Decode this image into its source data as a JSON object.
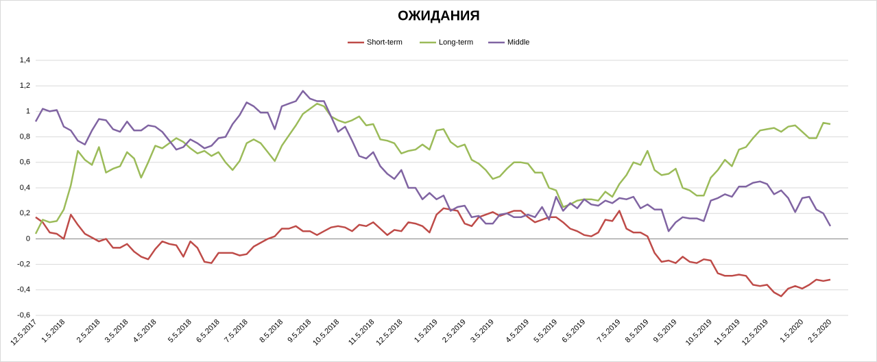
{
  "chart_data": {
    "type": "line",
    "title": "ОЖИДАНИЯ",
    "categories": [
      "12.5.2017",
      null,
      null,
      null,
      "1.5.2018",
      null,
      null,
      null,
      null,
      "2.5.2018",
      null,
      null,
      null,
      "3.5.2018",
      null,
      null,
      null,
      "4.5.2018",
      null,
      null,
      null,
      null,
      "5.5.2018",
      null,
      null,
      null,
      "6.5.2018",
      null,
      null,
      null,
      "7.5.2018",
      null,
      null,
      null,
      null,
      "8.5.2018",
      null,
      null,
      null,
      "9.5.2018",
      null,
      null,
      null,
      "10.5.2018",
      null,
      null,
      null,
      null,
      "11.5.2018",
      null,
      null,
      null,
      "12.5.2018",
      null,
      null,
      null,
      null,
      "1.5.2019",
      null,
      null,
      null,
      "2.5.2019",
      null,
      null,
      null,
      "3.5.2019",
      null,
      null,
      null,
      null,
      "4.5.2019",
      null,
      null,
      null,
      "5.5.2019",
      null,
      null,
      null,
      "6.5.2019",
      null,
      null,
      null,
      null,
      "7.5.2019",
      null,
      null,
      null,
      "8.5.2019",
      null,
      null,
      null,
      "9.5.2019",
      null,
      null,
      null,
      null,
      "10.5.2019",
      null,
      null,
      null,
      "11.5.2019",
      null,
      null,
      null,
      "12.5.2019",
      null,
      null,
      null,
      null,
      "1.5.2020",
      null,
      null,
      null,
      "2.5.2020"
    ],
    "series": [
      {
        "name": "Short-term",
        "color": "#be4b48",
        "values": [
          0.17,
          0.13,
          0.05,
          0.04,
          0.0,
          0.19,
          0.11,
          0.04,
          0.01,
          -0.02,
          0.0,
          -0.07,
          -0.07,
          -0.04,
          -0.1,
          -0.14,
          -0.16,
          -0.08,
          -0.02,
          -0.04,
          -0.05,
          -0.14,
          -0.02,
          -0.07,
          -0.18,
          -0.19,
          -0.11,
          -0.11,
          -0.11,
          -0.13,
          -0.12,
          -0.06,
          -0.03,
          0.0,
          0.02,
          0.08,
          0.08,
          0.1,
          0.06,
          0.06,
          0.03,
          0.06,
          0.09,
          0.1,
          0.09,
          0.06,
          0.11,
          0.1,
          0.13,
          0.08,
          0.03,
          0.07,
          0.06,
          0.13,
          0.12,
          0.1,
          0.05,
          0.19,
          0.24,
          0.23,
          0.22,
          0.12,
          0.1,
          0.17,
          0.19,
          0.21,
          0.18,
          0.2,
          0.22,
          0.22,
          0.17,
          0.13,
          0.15,
          0.17,
          0.17,
          0.13,
          0.08,
          0.06,
          0.03,
          0.02,
          0.05,
          0.15,
          0.14,
          0.22,
          0.08,
          0.05,
          0.05,
          0.02,
          -0.11,
          -0.18,
          -0.17,
          -0.19,
          -0.14,
          -0.18,
          -0.19,
          -0.16,
          -0.17,
          -0.27,
          -0.29,
          -0.29,
          -0.28,
          -0.29,
          -0.36,
          -0.37,
          -0.36,
          -0.42,
          -0.45,
          -0.39,
          -0.37,
          -0.39,
          -0.36,
          -0.32,
          -0.33,
          -0.32
        ]
      },
      {
        "name": "Long-term",
        "color": "#9bbb59",
        "values": [
          0.04,
          0.15,
          0.13,
          0.14,
          0.23,
          0.42,
          0.69,
          0.62,
          0.58,
          0.72,
          0.52,
          0.55,
          0.57,
          0.68,
          0.63,
          0.48,
          0.6,
          0.73,
          0.71,
          0.75,
          0.79,
          0.76,
          0.71,
          0.67,
          0.69,
          0.65,
          0.68,
          0.6,
          0.54,
          0.61,
          0.75,
          0.78,
          0.75,
          0.68,
          0.61,
          0.73,
          0.81,
          0.89,
          0.98,
          1.02,
          1.06,
          1.04,
          0.96,
          0.93,
          0.91,
          0.93,
          0.96,
          0.89,
          0.9,
          0.78,
          0.77,
          0.75,
          0.67,
          0.69,
          0.7,
          0.74,
          0.7,
          0.85,
          0.86,
          0.76,
          0.72,
          0.74,
          0.62,
          0.59,
          0.54,
          0.47,
          0.49,
          0.55,
          0.6,
          0.6,
          0.59,
          0.52,
          0.52,
          0.4,
          0.38,
          0.25,
          0.27,
          0.3,
          0.31,
          0.31,
          0.3,
          0.37,
          0.33,
          0.43,
          0.5,
          0.6,
          0.58,
          0.69,
          0.54,
          0.5,
          0.51,
          0.55,
          0.4,
          0.38,
          0.34,
          0.34,
          0.48,
          0.54,
          0.62,
          0.57,
          0.7,
          0.72,
          0.79,
          0.85,
          0.86,
          0.87,
          0.84,
          0.88,
          0.89,
          0.84,
          0.79,
          0.79,
          0.91,
          0.9
        ]
      },
      {
        "name": "Middle",
        "color": "#8064a2",
        "values": [
          0.92,
          1.02,
          1.0,
          1.01,
          0.88,
          0.85,
          0.77,
          0.74,
          0.85,
          0.94,
          0.93,
          0.86,
          0.84,
          0.92,
          0.85,
          0.85,
          0.89,
          0.88,
          0.84,
          0.77,
          0.7,
          0.72,
          0.78,
          0.75,
          0.71,
          0.73,
          0.79,
          0.8,
          0.9,
          0.97,
          1.07,
          1.04,
          0.99,
          0.99,
          0.86,
          1.04,
          1.06,
          1.08,
          1.16,
          1.1,
          1.08,
          1.08,
          0.96,
          0.84,
          0.88,
          0.77,
          0.65,
          0.63,
          0.68,
          0.57,
          0.51,
          0.47,
          0.54,
          0.4,
          0.4,
          0.31,
          0.36,
          0.31,
          0.34,
          0.22,
          0.25,
          0.26,
          0.17,
          0.18,
          0.12,
          0.12,
          0.19,
          0.2,
          0.17,
          0.17,
          0.19,
          0.17,
          0.25,
          0.15,
          0.33,
          0.22,
          0.28,
          0.24,
          0.31,
          0.27,
          0.26,
          0.3,
          0.28,
          0.32,
          0.31,
          0.33,
          0.24,
          0.27,
          0.23,
          0.23,
          0.06,
          0.13,
          0.17,
          0.16,
          0.16,
          0.14,
          0.3,
          0.32,
          0.35,
          0.33,
          0.41,
          0.41,
          0.44,
          0.45,
          0.43,
          0.35,
          0.38,
          0.32,
          0.21,
          0.32,
          0.33,
          0.23,
          0.2,
          0.1
        ]
      }
    ],
    "ylim": [
      -0.6,
      1.4
    ],
    "yticks": [
      {
        "value": -0.6,
        "label": "-0,6"
      },
      {
        "value": -0.4,
        "label": "-0,4"
      },
      {
        "value": -0.2,
        "label": "-0,2"
      },
      0,
      {
        "value": 0.2,
        "label": "0,2"
      },
      {
        "value": 0.4,
        "label": "0,4"
      },
      {
        "value": 0.6,
        "label": "0,6"
      },
      {
        "value": 0.8,
        "label": "0,8"
      },
      1,
      {
        "value": 1.2,
        "label": "1,2"
      },
      {
        "value": 1.4,
        "label": "1,4"
      }
    ],
    "grid": true,
    "legend": "top"
  }
}
